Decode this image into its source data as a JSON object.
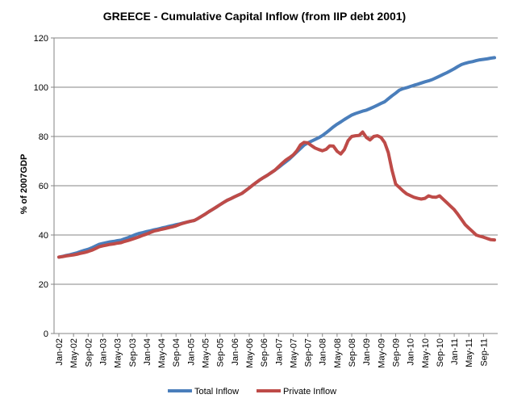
{
  "chart_data": {
    "type": "line",
    "title": "GREECE - Cumulative Capital Inflow (from IIP debt 2001)",
    "xlabel": "",
    "ylabel": "% of 2007GDP",
    "ylim": [
      0,
      120
    ],
    "yticks": [
      0,
      20,
      40,
      60,
      80,
      100,
      120
    ],
    "x_start": "Jan-02",
    "x_end": "Dec-11",
    "x_tick_labels": [
      "Jan-02",
      "May-02",
      "Sep-02",
      "Jan-03",
      "May-03",
      "Sep-03",
      "Jan-04",
      "May-04",
      "Sep-04",
      "Jan-05",
      "May-05",
      "Sep-05",
      "Jan-06",
      "May-06",
      "Sep-06",
      "Jan-07",
      "May-07",
      "Sep-07",
      "Jan-08",
      "May-08",
      "Sep-08",
      "Jan-09",
      "May-09",
      "Sep-09",
      "Jan-10",
      "May-10",
      "Sep-10",
      "Jan-11",
      "May-11",
      "Sep-11"
    ],
    "grid": "horizontal",
    "legend_position": "bottom",
    "series": [
      {
        "name": "Total Inflow",
        "color": "#4a7ebb",
        "anchors": [
          [
            0,
            31
          ],
          [
            6,
            32.5
          ],
          [
            12,
            34.5
          ],
          [
            16,
            36.5
          ],
          [
            24,
            38
          ],
          [
            30,
            40.5
          ],
          [
            36,
            42
          ],
          [
            44,
            44
          ],
          [
            52,
            46
          ],
          [
            58,
            50
          ],
          [
            64,
            54
          ],
          [
            70,
            57
          ],
          [
            76,
            62
          ],
          [
            82,
            66
          ],
          [
            88,
            71
          ],
          [
            94,
            77
          ],
          [
            100,
            80
          ],
          [
            106,
            85
          ],
          [
            112,
            89
          ],
          [
            118,
            91
          ],
          [
            124,
            94
          ],
          [
            130,
            99
          ],
          [
            136,
            101
          ],
          [
            142,
            103
          ],
          [
            148,
            106
          ],
          [
            154,
            109.5
          ],
          [
            160,
            111
          ],
          [
            166,
            112
          ]
        ],
        "values": []
      },
      {
        "name": "Private Inflow",
        "color": "#be4b48",
        "anchors": [
          [
            0,
            31
          ],
          [
            6,
            32
          ],
          [
            12,
            33.5
          ],
          [
            16,
            35.5
          ],
          [
            24,
            37
          ],
          [
            30,
            39
          ],
          [
            36,
            41.5
          ],
          [
            44,
            43.5
          ],
          [
            48,
            45
          ],
          [
            52,
            46
          ],
          [
            58,
            50
          ],
          [
            64,
            54
          ],
          [
            70,
            57
          ],
          [
            76,
            62
          ],
          [
            82,
            66
          ],
          [
            86,
            70
          ],
          [
            90,
            73
          ],
          [
            92,
            76.5
          ],
          [
            94,
            78
          ],
          [
            98,
            75
          ],
          [
            101,
            74
          ],
          [
            104,
            77
          ],
          [
            106,
            74
          ],
          [
            108,
            72.5
          ],
          [
            110,
            78
          ],
          [
            112,
            80.5
          ],
          [
            114,
            80
          ],
          [
            116,
            82
          ],
          [
            118,
            78
          ],
          [
            120,
            80
          ],
          [
            122,
            80.5
          ],
          [
            124,
            78
          ],
          [
            126,
            72
          ],
          [
            127,
            66
          ],
          [
            128,
            61
          ],
          [
            132,
            57
          ],
          [
            136,
            55
          ],
          [
            139,
            54.5
          ],
          [
            141,
            56
          ],
          [
            143,
            55
          ],
          [
            145,
            56
          ],
          [
            147,
            54
          ],
          [
            151,
            50
          ],
          [
            155,
            44
          ],
          [
            157,
            42
          ],
          [
            159,
            40
          ],
          [
            162,
            39
          ],
          [
            165,
            38
          ]
        ],
        "values": []
      }
    ]
  },
  "legend": {
    "total_label": "Total Inflow",
    "private_label": "Private Inflow"
  }
}
